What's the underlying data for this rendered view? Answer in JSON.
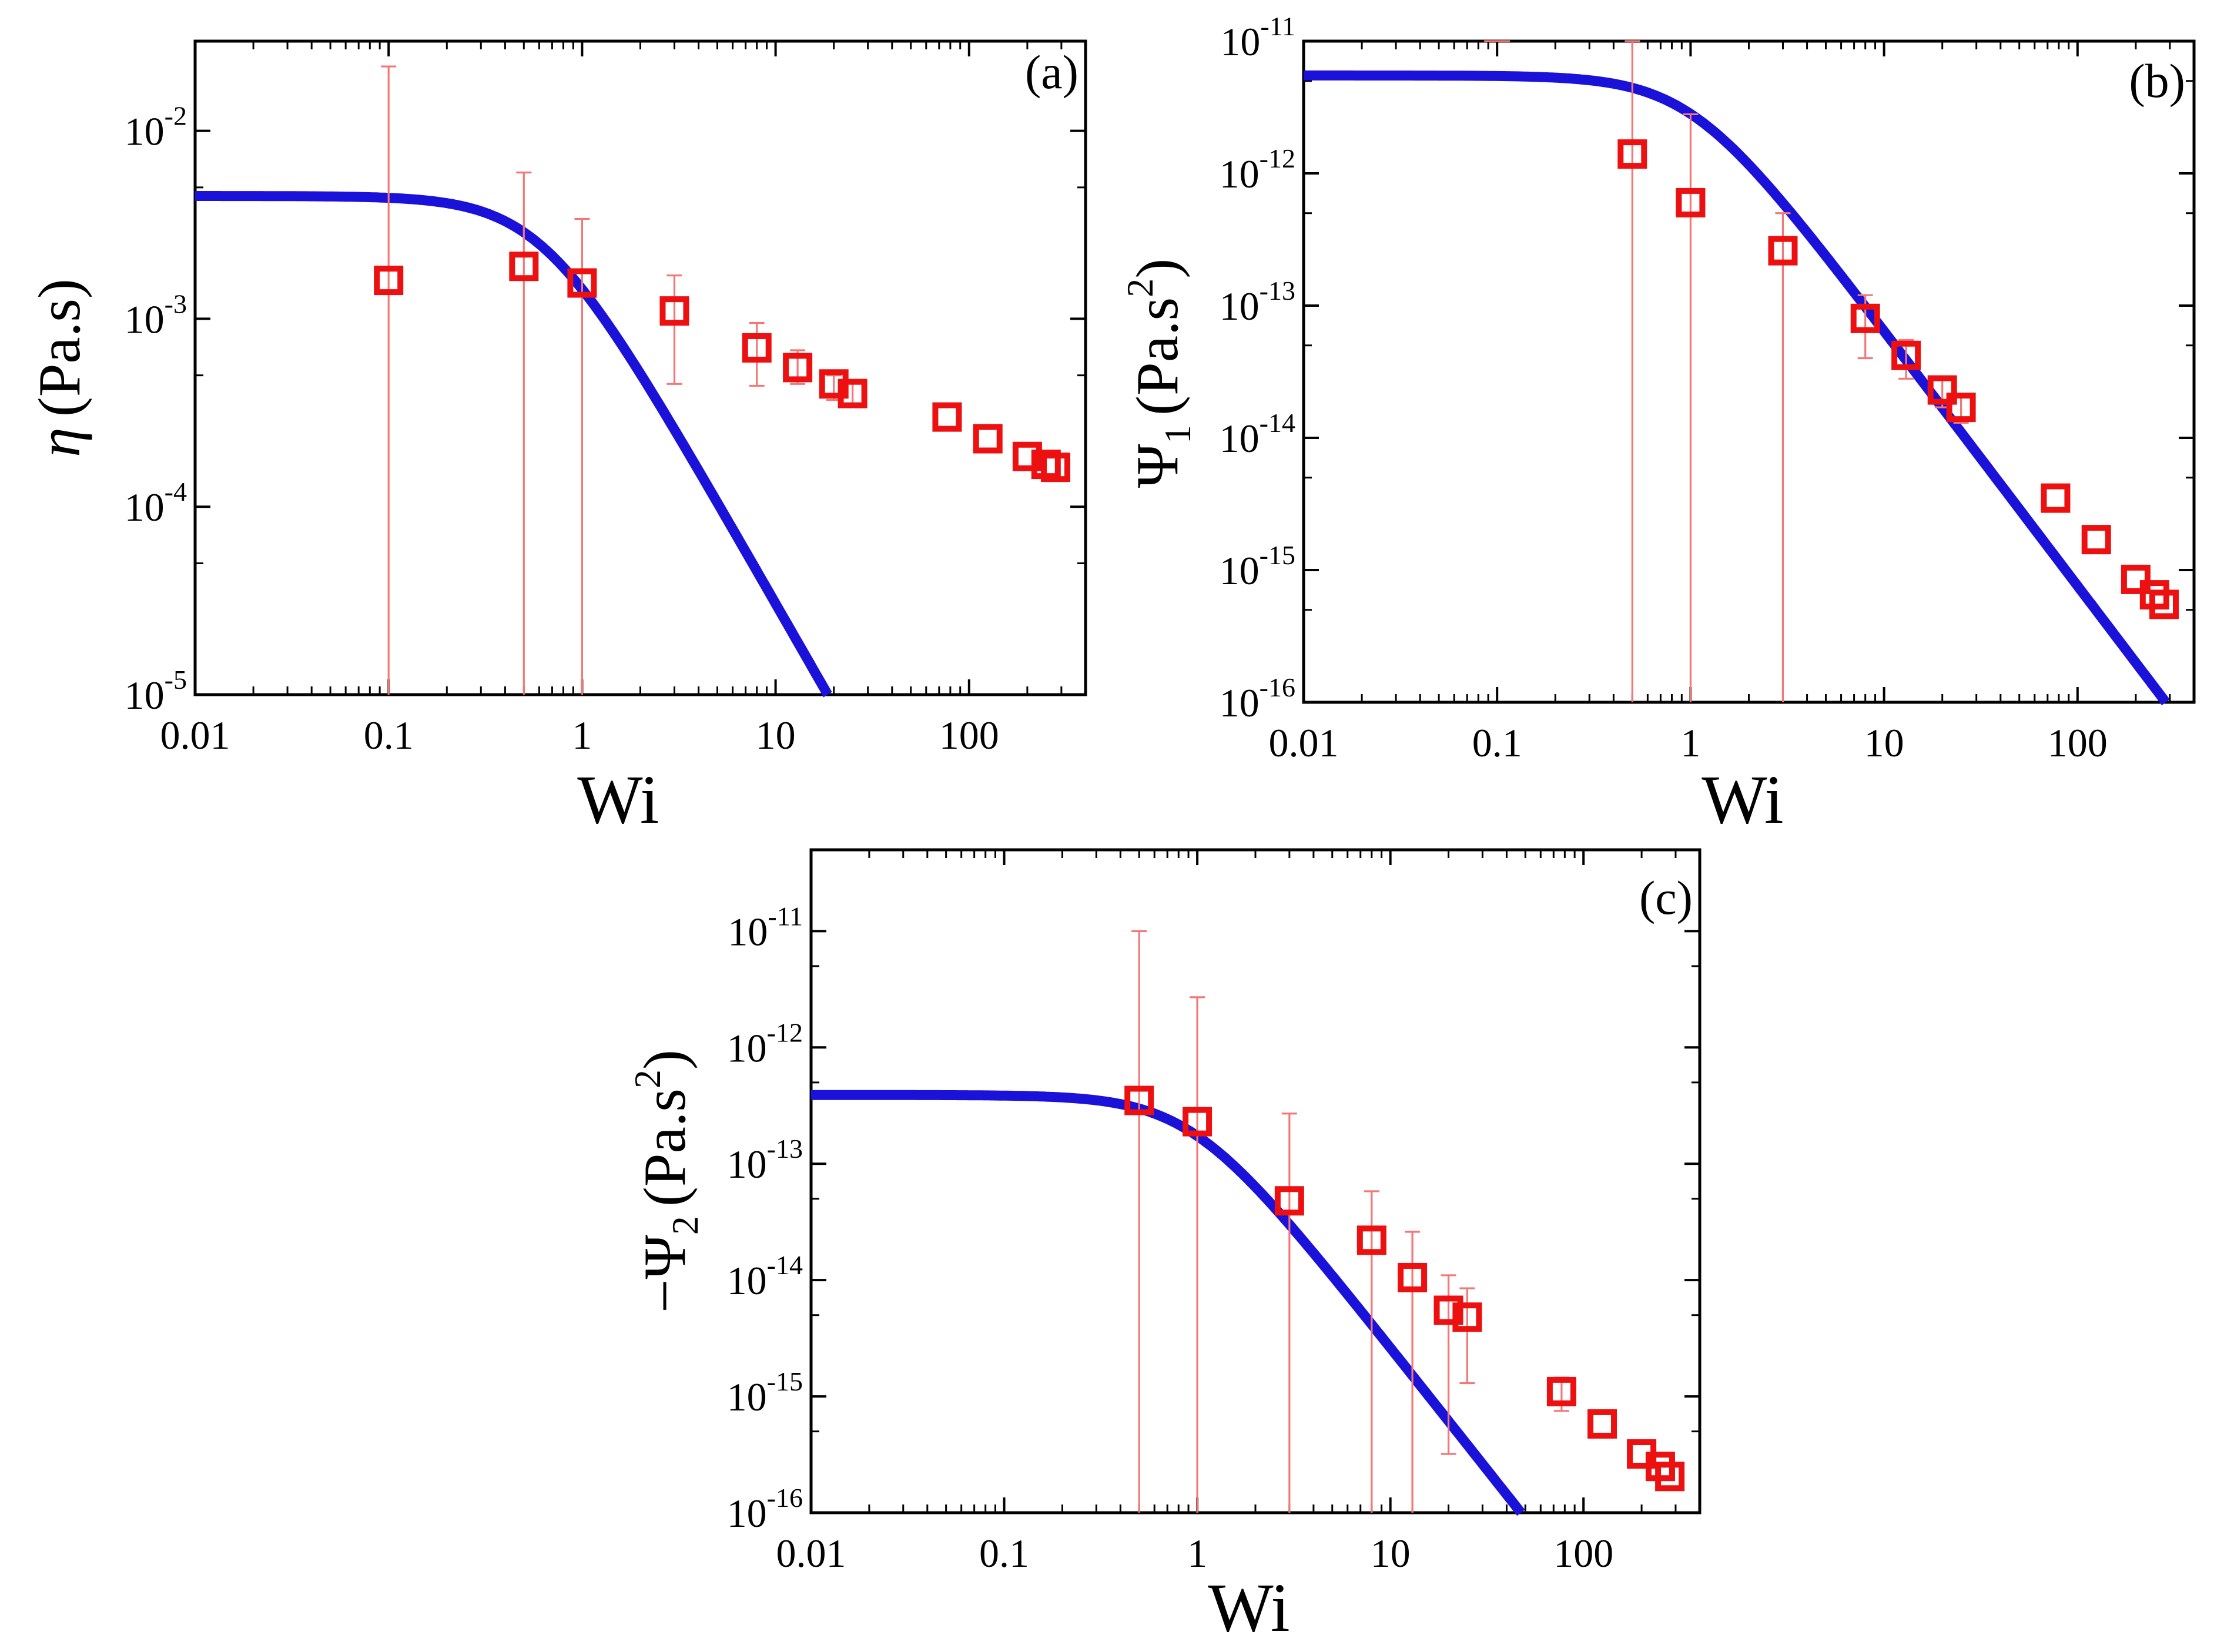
{
  "figure": {
    "colors": {
      "fit_line": "#1a12d8",
      "marker": "#ec1010",
      "error_bar": "#f37777",
      "axes": "#000000"
    }
  },
  "chart_data": [
    {
      "id": "a",
      "type": "scatter",
      "panel_label": "(a)",
      "xlabel": "Wi",
      "ylabel": "η (Pa.s)",
      "xscale": "log",
      "yscale": "log",
      "xlim": [
        0.01,
        400
      ],
      "ylim": [
        1e-05,
        0.03
      ],
      "xticks": [
        {
          "v": 0.01,
          "label": "0.01"
        },
        {
          "v": 0.1,
          "label": "0.1"
        },
        {
          "v": 1,
          "label": "1"
        },
        {
          "v": 10,
          "label": "10"
        },
        {
          "v": 100,
          "label": "100"
        }
      ],
      "yticks": [
        {
          "v": 1e-05,
          "base": "10",
          "exp": "-5"
        },
        {
          "v": 0.0001,
          "base": "10",
          "exp": "-4"
        },
        {
          "v": 0.001,
          "base": "10",
          "exp": "-3"
        },
        {
          "v": 0.01,
          "base": "10",
          "exp": "-2"
        }
      ],
      "model": {
        "name": "fit",
        "eta0": 0.0045,
        "lambda": 1.6,
        "n": 1.8
      },
      "series": [
        {
          "name": "experiment",
          "x": [
            0.1,
            0.5,
            1,
            3,
            8,
            13,
            20,
            25,
            77,
            125,
            200,
            250,
            280
          ],
          "y": [
            0.0016,
            0.0019,
            0.00155,
            0.0011,
            0.0007,
            0.00055,
            0.00045,
            0.0004,
            0.0003,
            0.00023,
            0.000185,
            0.000168,
            0.000162
          ],
          "y_low": [
            1e-05,
            1e-05,
            1e-05,
            0.00045,
            0.00044,
            0.00045,
            0.00037,
            0.00034,
            null,
            null,
            null,
            null,
            null
          ],
          "y_high": [
            0.022,
            0.006,
            0.0034,
            0.0017,
            0.00095,
            0.00068,
            0.0005,
            0.00046,
            null,
            null,
            null,
            null,
            null
          ]
        }
      ]
    },
    {
      "id": "b",
      "type": "scatter",
      "panel_label": "(b)",
      "xlabel": "Wi",
      "ylabel": "Ψ1 (Pa.s2)",
      "xscale": "log",
      "yscale": "log",
      "xlim": [
        0.01,
        400
      ],
      "ylim": [
        1e-16,
        1e-11
      ],
      "xticks": [
        {
          "v": 0.01,
          "label": "0.01"
        },
        {
          "v": 0.1,
          "label": "0.1"
        },
        {
          "v": 1,
          "label": "1"
        },
        {
          "v": 10,
          "label": "10"
        },
        {
          "v": 100,
          "label": "100"
        }
      ],
      "yticks": [
        {
          "v": 1e-16,
          "base": "10",
          "exp": "-16"
        },
        {
          "v": 1e-15,
          "base": "10",
          "exp": "-15"
        },
        {
          "v": 1e-14,
          "base": "10",
          "exp": "-14"
        },
        {
          "v": 1e-13,
          "base": "10",
          "exp": "-13"
        },
        {
          "v": 1e-12,
          "base": "10",
          "exp": "-12"
        },
        {
          "v": 1e-11,
          "base": "10",
          "exp": "-11"
        }
      ],
      "model": {
        "name": "fit",
        "psi0": 5.5e-12,
        "lambda": 1.0,
        "n": 1.93
      },
      "series": [
        {
          "name": "experiment",
          "x": [
            0.5,
            1,
            3,
            8,
            13,
            20,
            25,
            77,
            125,
            200,
            250,
            280
          ],
          "y": [
            1.4e-12,
            6e-13,
            2.6e-13,
            8e-14,
            4.2e-14,
            2.3e-14,
            1.7e-14,
            3.5e-15,
            1.7e-15,
            8.5e-16,
            6.5e-16,
            5.5e-16
          ],
          "y_low": [
            1e-16,
            1e-16,
            1e-16,
            4e-14,
            2.8e-14,
            1.7e-14,
            1.3e-14,
            null,
            null,
            null,
            null,
            null
          ],
          "y_high": [
            1e-11,
            2.8e-12,
            5e-13,
            1.2e-13,
            5.5e-14,
            2.9e-14,
            2.1e-14,
            null,
            null,
            null,
            null,
            null
          ]
        },
        {
          "name": "offscale-errorbar",
          "x": [
            0.1
          ],
          "y": [
            1e-11
          ]
        }
      ]
    },
    {
      "id": "c",
      "type": "scatter",
      "panel_label": "(c)",
      "xlabel": "Wi",
      "ylabel": "−Ψ2 (Pa.s2)",
      "xscale": "log",
      "yscale": "log",
      "xlim": [
        0.01,
        400
      ],
      "ylim": [
        1e-16,
        5e-11
      ],
      "xticks": [
        {
          "v": 0.01,
          "label": "0.01"
        },
        {
          "v": 0.1,
          "label": "0.1"
        },
        {
          "v": 1,
          "label": "1"
        },
        {
          "v": 10,
          "label": "10"
        },
        {
          "v": 100,
          "label": "100"
        }
      ],
      "yticks": [
        {
          "v": 1e-16,
          "base": "10",
          "exp": "-16"
        },
        {
          "v": 1e-15,
          "base": "10",
          "exp": "-15"
        },
        {
          "v": 1e-14,
          "base": "10",
          "exp": "-14"
        },
        {
          "v": 1e-13,
          "base": "10",
          "exp": "-13"
        },
        {
          "v": 1e-12,
          "base": "10",
          "exp": "-12"
        },
        {
          "v": 1e-11,
          "base": "10",
          "exp": "-11"
        }
      ],
      "model": {
        "name": "fit",
        "psi0": 3.9e-13,
        "lambda": 1.08,
        "n": 2.1
      },
      "series": [
        {
          "name": "experiment",
          "x": [
            0.5,
            1,
            3,
            8,
            13,
            20,
            25,
            77,
            125,
            200,
            250,
            280
          ],
          "y": [
            3.5e-13,
            2.3e-13,
            4.8e-14,
            2.2e-14,
            1.05e-14,
            5.5e-15,
            4.8e-15,
            1.1e-15,
            5.8e-16,
            3.2e-16,
            2.5e-16,
            2.05e-16
          ],
          "y_low": [
            1e-16,
            1e-16,
            1e-16,
            1e-16,
            1e-16,
            3.2e-16,
            1.3e-15,
            7.5e-16,
            null,
            null,
            null,
            null
          ],
          "y_high": [
            1e-11,
            2.7e-12,
            2.7e-13,
            5.8e-14,
            2.6e-14,
            1.1e-14,
            8.5e-15,
            1.45e-15,
            null,
            null,
            null,
            null
          ]
        }
      ]
    }
  ]
}
